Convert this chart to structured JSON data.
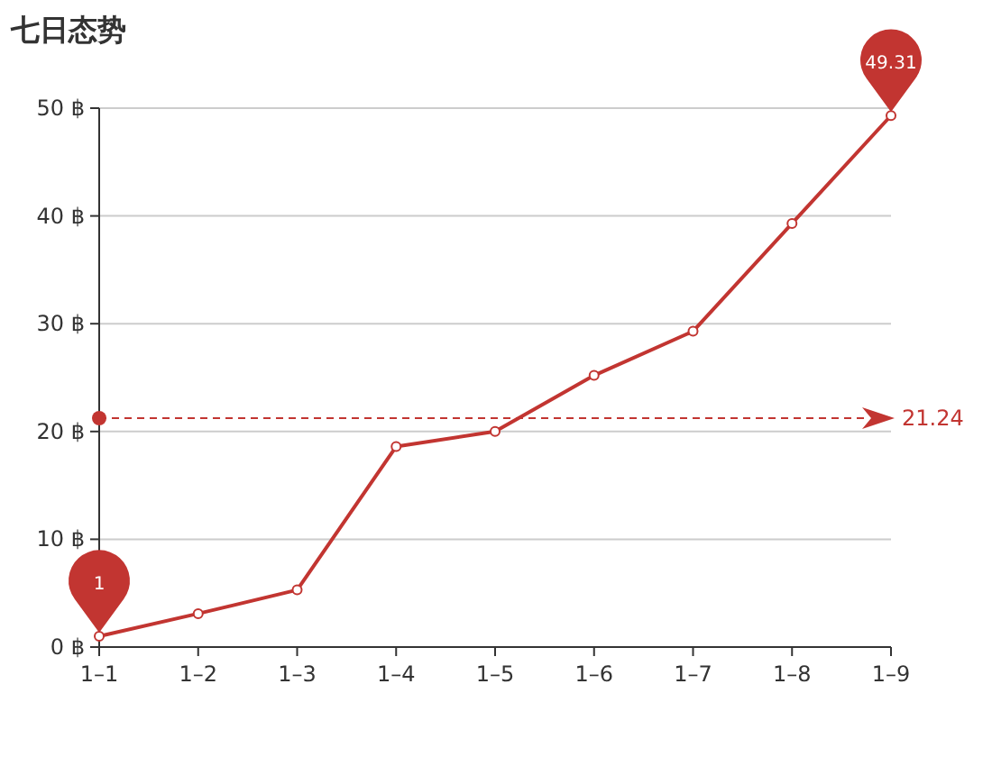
{
  "chart_data": {
    "type": "line",
    "title": "七日态势",
    "categories": [
      "1–1",
      "1–2",
      "1–3",
      "1–4",
      "1–5",
      "1–6",
      "1–7",
      "1–8",
      "1–9"
    ],
    "series": [
      {
        "color": "#c23531",
        "values": [
          1,
          3.1,
          5.3,
          18.6,
          20,
          25.2,
          29.3,
          39.3,
          49.31
        ]
      }
    ],
    "ylim": [
      0,
      50
    ],
    "yticks": [
      {
        "value": 0,
        "label": "0 ฿"
      },
      {
        "value": 10,
        "label": "10 ฿"
      },
      {
        "value": 20,
        "label": "20 ฿"
      },
      {
        "value": 30,
        "label": "30 ฿"
      },
      {
        "value": 40,
        "label": "40 ฿"
      },
      {
        "value": 50,
        "label": "50 ฿"
      }
    ],
    "grid": "y",
    "marker": "circle",
    "line_style": "solid",
    "ref_lines": [
      {
        "axis": "y",
        "value": 21.24,
        "label": "21.24",
        "color": "#c23531",
        "line_style": "dashed"
      }
    ],
    "annotations": [
      {
        "text": "1",
        "x": "1–1",
        "y": 1
      },
      {
        "text": "49.31",
        "x": "1–9",
        "y": 49.31
      }
    ]
  }
}
